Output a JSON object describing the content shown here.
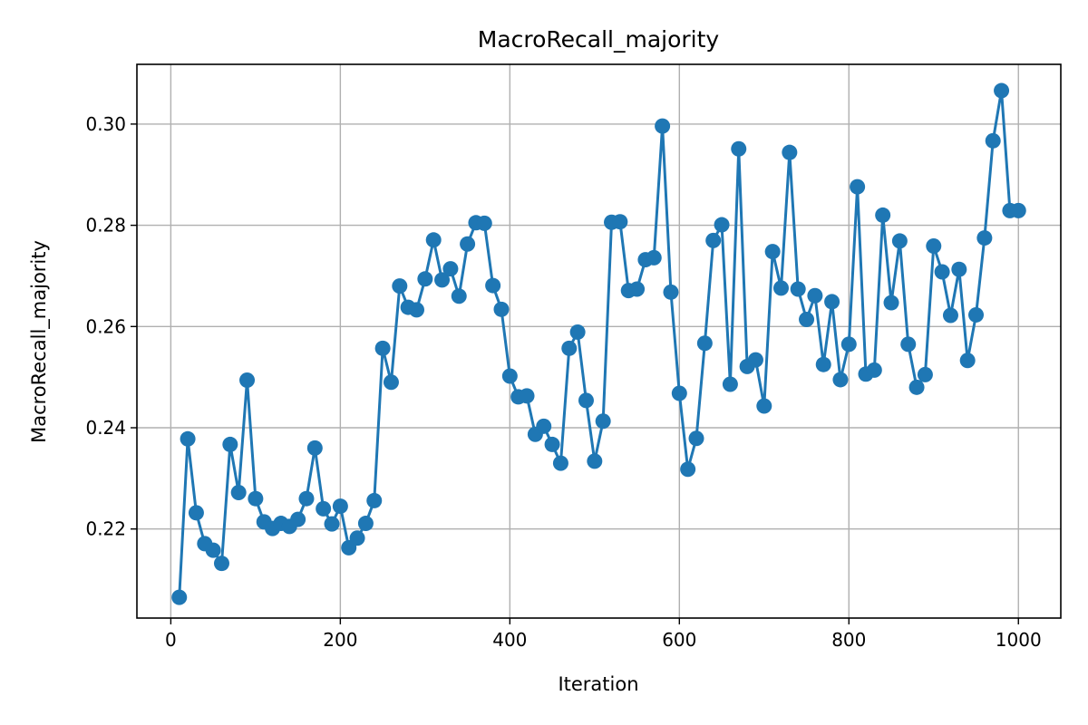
{
  "chart_data": {
    "type": "line",
    "title": "MacroRecall_majority",
    "xlabel": "Iteration",
    "ylabel": "MacroRecall_majority",
    "xlim": [
      -40,
      1050
    ],
    "ylim": [
      0.2024,
      0.3118
    ],
    "xticks": [
      0,
      200,
      400,
      600,
      800,
      1000
    ],
    "xtick_labels": [
      "0",
      "200",
      "400",
      "600",
      "800",
      "1000"
    ],
    "yticks": [
      0.22,
      0.24,
      0.26,
      0.28,
      0.3
    ],
    "ytick_labels": [
      "0.22",
      "0.24",
      "0.26",
      "0.28",
      "0.30"
    ],
    "grid": true,
    "series": [
      {
        "color": "#1f77b4",
        "marker": "circle",
        "x": [
          10,
          20,
          30,
          40,
          50,
          60,
          70,
          80,
          90,
          100,
          110,
          120,
          130,
          140,
          150,
          160,
          170,
          180,
          190,
          200,
          210,
          220,
          230,
          240,
          250,
          260,
          270,
          280,
          290,
          300,
          310,
          320,
          330,
          340,
          350,
          360,
          370,
          380,
          390,
          400,
          410,
          420,
          430,
          440,
          450,
          460,
          470,
          480,
          490,
          500,
          510,
          520,
          530,
          540,
          550,
          560,
          570,
          580,
          590,
          600,
          610,
          620,
          630,
          640,
          650,
          660,
          670,
          680,
          690,
          700,
          710,
          720,
          730,
          740,
          750,
          760,
          770,
          780,
          790,
          800,
          810,
          820,
          830,
          840,
          850,
          860,
          870,
          880,
          890,
          900,
          910,
          920,
          930,
          940,
          950,
          960,
          970,
          980,
          990,
          1000
        ],
        "y": [
          0.2065,
          0.2378,
          0.2232,
          0.2171,
          0.2158,
          0.2132,
          0.2367,
          0.2272,
          0.2494,
          0.226,
          0.2214,
          0.2201,
          0.2211,
          0.2205,
          0.2219,
          0.226,
          0.236,
          0.224,
          0.221,
          0.2245,
          0.2163,
          0.2182,
          0.2211,
          0.2256,
          0.2557,
          0.249,
          0.268,
          0.2638,
          0.2633,
          0.2694,
          0.2771,
          0.2692,
          0.2714,
          0.266,
          0.2763,
          0.2805,
          0.2804,
          0.2681,
          0.2634,
          0.2502,
          0.2461,
          0.2463,
          0.2387,
          0.2403,
          0.2367,
          0.233,
          0.2557,
          0.2589,
          0.2454,
          0.2334,
          0.2413,
          0.2806,
          0.2807,
          0.2671,
          0.2674,
          0.2732,
          0.2736,
          0.2996,
          0.2668,
          0.2468,
          0.2318,
          0.2379,
          0.2567,
          0.277,
          0.2801,
          0.2486,
          0.2951,
          0.2521,
          0.2534,
          0.2443,
          0.2748,
          0.2676,
          0.2944,
          0.2674,
          0.2614,
          0.2661,
          0.2525,
          0.2649,
          0.2495,
          0.2565,
          0.2876,
          0.2506,
          0.2514,
          0.282,
          0.2647,
          0.2769,
          0.2565,
          0.248,
          0.2505,
          0.2759,
          0.2708,
          0.2622,
          0.2713,
          0.2533,
          0.2623,
          0.2775,
          0.2967,
          0.3066,
          0.2829,
          0.2829
        ]
      }
    ]
  }
}
